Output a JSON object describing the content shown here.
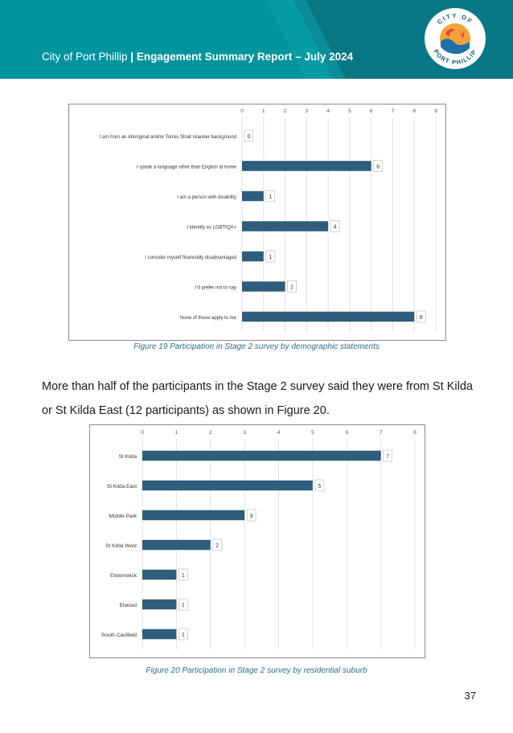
{
  "header": {
    "org": "City of Port Phillip",
    "separator": " | ",
    "report_title": "Engagement Summary Report – July 2024",
    "logo_text_top": "CITY OF",
    "logo_text_bottom": "PORT PHILLIP"
  },
  "colors": {
    "header_teal": "#00949f",
    "header_dark": "#0a6e7c",
    "bar": "#2f5d7c",
    "caption": "#2d6d8e",
    "grid": "#e1e1e1"
  },
  "figure19": {
    "caption": "Figure 19 Participation in Stage 2 survey by demographic statements"
  },
  "figure20": {
    "caption": "Figure 20 Participation in Stage 2 survey by residential suburb"
  },
  "body": {
    "paragraph": "More than half of the participants in the Stage 2 survey said they were from St Kilda or St Kilda East (12 participants) as shown in Figure 20."
  },
  "page_number": "37",
  "chart_data": [
    {
      "type": "bar",
      "orientation": "horizontal",
      "categories": [
        "I am from an Aboriginal and/or Torres Strait Islander background",
        "I speak a language other than English at home",
        "I am a person with disability",
        "I identify as LGBTIQA+",
        "I consider myself financially disadvantaged",
        "I'd prefer not to say",
        "None of these apply to me"
      ],
      "values": [
        0,
        6,
        1,
        4,
        1,
        2,
        8
      ],
      "xlim": [
        0,
        9
      ],
      "ticks": [
        0,
        1,
        2,
        3,
        4,
        5,
        6,
        7,
        8,
        9
      ],
      "tick_position": "top",
      "grid": true,
      "data_labels": true,
      "color": "#2f5d7c"
    },
    {
      "type": "bar",
      "orientation": "horizontal",
      "categories": [
        "St Kilda",
        "St Kilda East",
        "Middle Park",
        "St Kilda West",
        "Elsternwick",
        "Elwood",
        "South Caulfield"
      ],
      "values": [
        7,
        5,
        3,
        2,
        1,
        1,
        1
      ],
      "xlim": [
        0,
        8
      ],
      "ticks": [
        0,
        1,
        2,
        3,
        4,
        5,
        6,
        7,
        8
      ],
      "tick_position": "top",
      "grid": true,
      "data_labels": true,
      "color": "#2f5d7c"
    }
  ]
}
